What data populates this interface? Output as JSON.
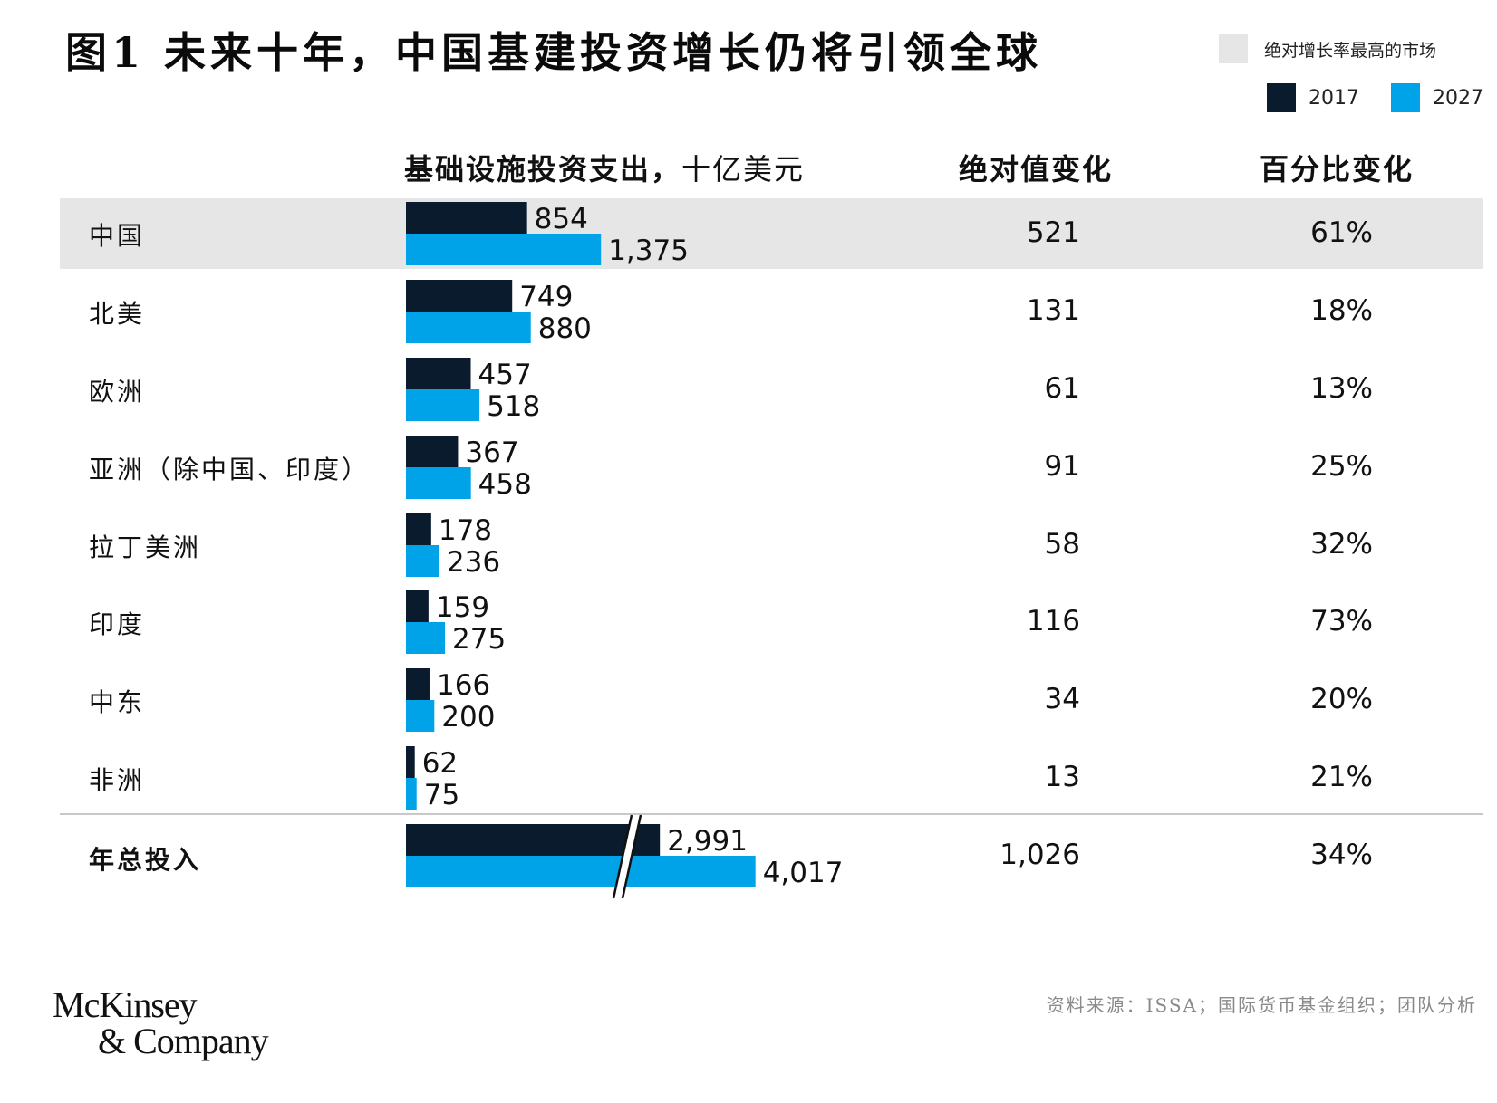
{
  "title": "图1 未来十年，中国基建投资增长仍将引领全球",
  "legend": {
    "highlight_label": "绝对增长率最高的市场",
    "highlight_color": "#e6e6e6",
    "series": [
      {
        "label": "2017",
        "color": "#0b1b2e"
      },
      {
        "label": "2027",
        "color": "#00a3e8"
      }
    ]
  },
  "columns": {
    "spend_bold": "基础设施投资支出，",
    "spend_unit": "十亿美元",
    "abs_change": "绝对值变化",
    "pct_change": "百分比变化"
  },
  "chart_data": {
    "type": "bar",
    "orientation": "horizontal",
    "categories": [
      "中国",
      "北美",
      "欧洲",
      "亚洲（除中国、印度）",
      "拉丁美洲",
      "印度",
      "中东",
      "非洲",
      "年总投入"
    ],
    "series": [
      {
        "name": "2017",
        "values": [
          854,
          749,
          457,
          367,
          178,
          159,
          166,
          62,
          2991
        ]
      },
      {
        "name": "2027",
        "values": [
          1375,
          880,
          518,
          458,
          236,
          275,
          200,
          75,
          4017
        ]
      }
    ],
    "value_labels": {
      "2017": [
        "854",
        "749",
        "457",
        "367",
        "178",
        "159",
        "166",
        "62",
        "2,991"
      ],
      "2027": [
        "1,375",
        "880",
        "518",
        "458",
        "236",
        "275",
        "200",
        "75",
        "4,017"
      ]
    },
    "absolute_change": [
      "521",
      "131",
      "61",
      "91",
      "58",
      "116",
      "34",
      "13",
      "1,026"
    ],
    "percent_change": [
      "61%",
      "18%",
      "13%",
      "25%",
      "32%",
      "73%",
      "20%",
      "21%",
      "34%"
    ],
    "highlighted_category": "中国",
    "total_row_axis_break": true
  },
  "source": "资料来源：ISSA；国际货币基金组织；团队分析",
  "brand": {
    "line1": "McKinsey",
    "line2": "& Company"
  }
}
